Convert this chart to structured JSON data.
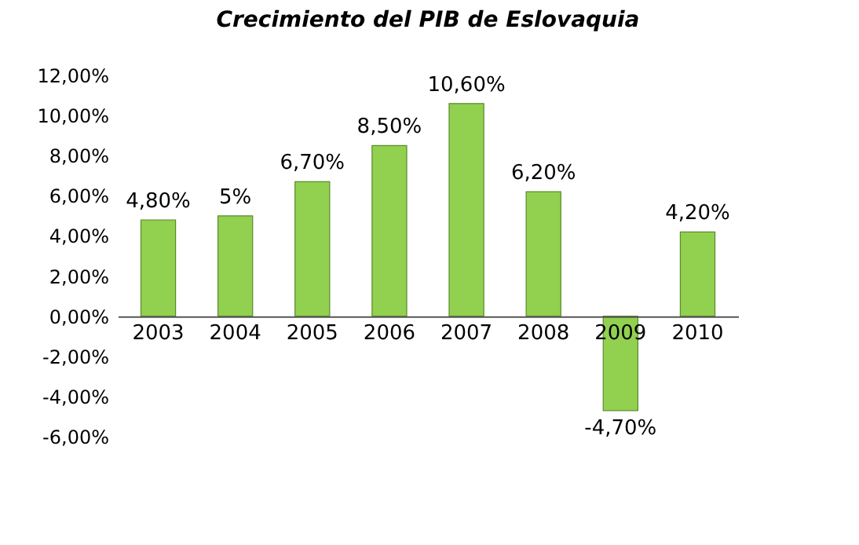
{
  "chart_data": {
    "type": "bar",
    "title": "Crecimiento del PIB de Eslovaquia",
    "categories": [
      "2003",
      "2004",
      "2005",
      "2006",
      "2007",
      "2008",
      "2009",
      "2010"
    ],
    "values": [
      4.8,
      5,
      6.7,
      8.5,
      10.6,
      6.2,
      -4.7,
      4.2
    ],
    "color": "#92d050",
    "value_labels": [
      "4,80%",
      "5%",
      "6,70%",
      "8,50%",
      "10,60%",
      "6,20%",
      "-4,70%",
      "4,20%"
    ],
    "ylim": [
      -6,
      12
    ],
    "yticks": [
      {
        "value": -6,
        "label": "-6,00%"
      },
      {
        "value": -4,
        "label": "-4,00%"
      },
      {
        "value": -2,
        "label": "-2,00%"
      },
      {
        "value": 0,
        "label": "0,00%"
      },
      {
        "value": 2,
        "label": "2,00%"
      },
      {
        "value": 4,
        "label": "4,00%"
      },
      {
        "value": 6,
        "label": "6,00%"
      },
      {
        "value": 8,
        "label": "8,00%"
      },
      {
        "value": 10,
        "label": "10,00%"
      },
      {
        "value": 12,
        "label": "12,00%"
      }
    ],
    "grid": false
  }
}
